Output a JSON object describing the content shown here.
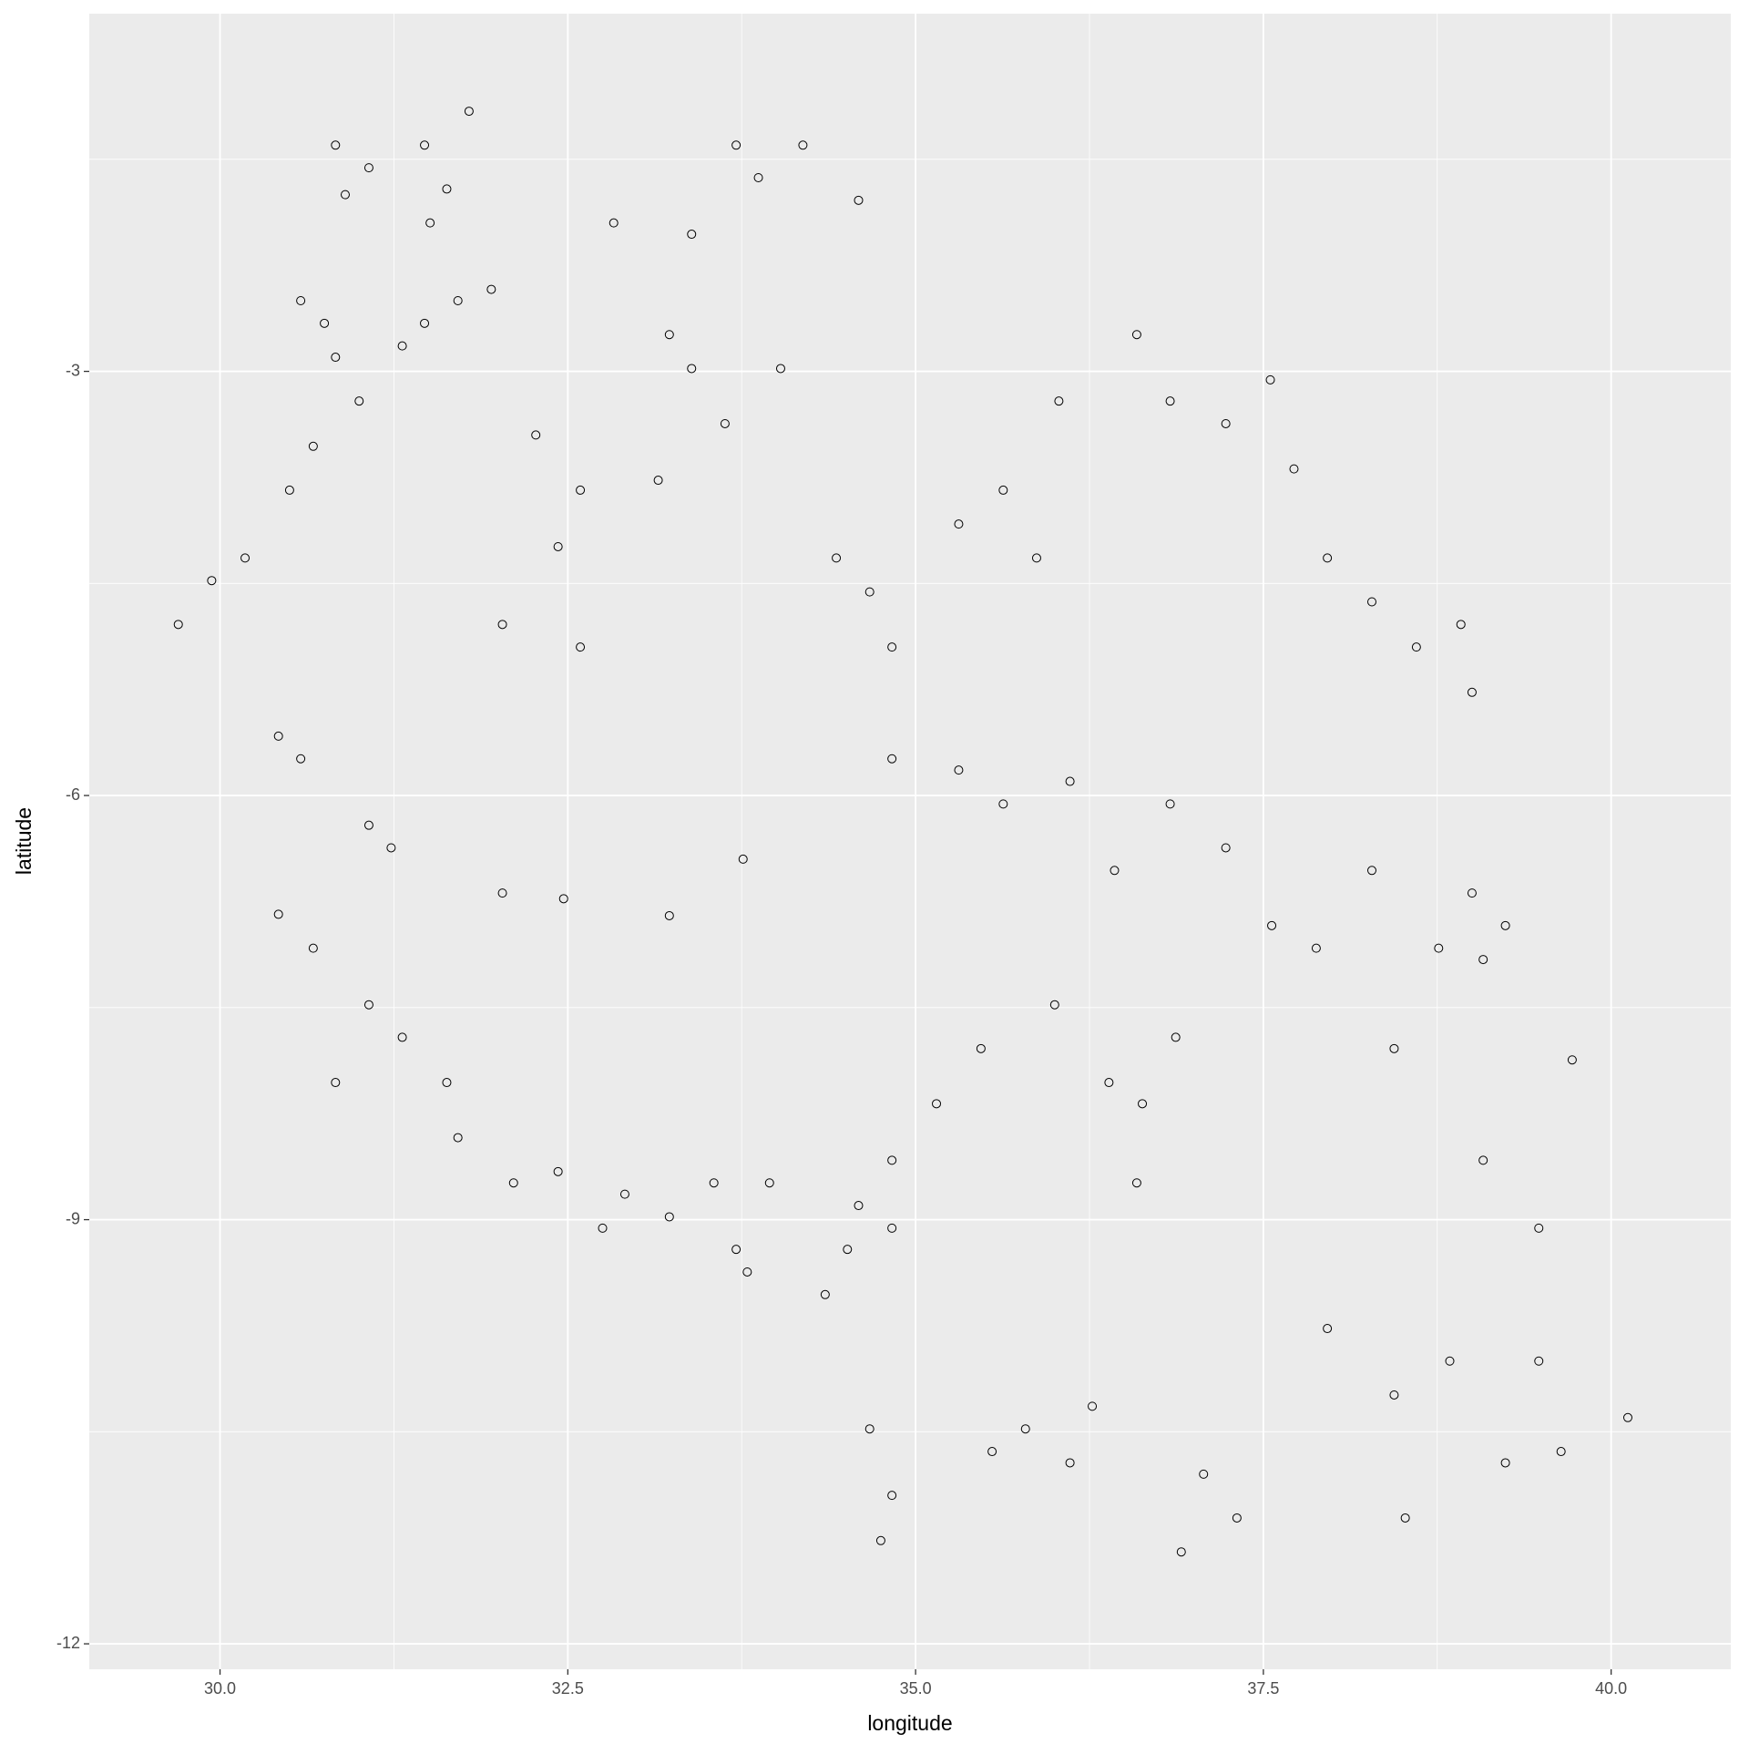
{
  "chart_data": {
    "type": "scatter",
    "x_label": "longitude",
    "y_label": "latitude",
    "xlim": [
      29.06,
      40.86
    ],
    "ylim": [
      -12.18,
      -0.47
    ],
    "xticks": [
      {
        "value": 30,
        "label": "30.0"
      },
      32.5,
      {
        "value": 35,
        "label": "35.0"
      },
      37.5,
      {
        "value": 40,
        "label": "40.0"
      }
    ],
    "yticks": [
      -3,
      -6,
      -9,
      -12
    ],
    "xminor": [
      31.25,
      33.75,
      36.25,
      38.75
    ],
    "yminor": [
      -1.5,
      -4.5,
      -7.5,
      -10.5
    ],
    "grid": true,
    "color": "#000000",
    "x": [
      30.83,
      31.07,
      31.47,
      31.63,
      31.79,
      30.9,
      31.51,
      30.58,
      30.75,
      30.83,
      31.47,
      31.71,
      31.31,
      31.0,
      30.67,
      30.5,
      29.94,
      29.7,
      30.18,
      30.42,
      30.58,
      32.27,
      32.59,
      33.23,
      33.39,
      34.03,
      33.63,
      33.15,
      32.43,
      32.03,
      32.59,
      31.95,
      32.83,
      33.39,
      33.87,
      34.19,
      34.59,
      33.71,
      34.67,
      34.83,
      34.43,
      35.31,
      35.63,
      35.87,
      36.03,
      36.83,
      37.23,
      37.55,
      36.59,
      37.72,
      37.96,
      38.28,
      38.6,
      38.92,
      39.0,
      35.63,
      36.11,
      36.83,
      37.23,
      36.43,
      35.31,
      34.83,
      39.0,
      39.08,
      39.24,
      38.76,
      38.28,
      37.88,
      37.56,
      36.87,
      36.63,
      36.59,
      36.39,
      36.0,
      35.47,
      35.15,
      34.83,
      34.59,
      34.51,
      34.35,
      34.83,
      32.75,
      32.91,
      33.23,
      33.79,
      33.71,
      33.55,
      33.95,
      32.43,
      32.11,
      31.07,
      31.31,
      31.63,
      31.71,
      30.67,
      31.07,
      31.23,
      30.42,
      30.83,
      32.03,
      32.47,
      33.23,
      33.76,
      34.67,
      34.83,
      34.75,
      35.55,
      35.79,
      36.11,
      36.27,
      37.07,
      37.31,
      36.91,
      38.44,
      38.84,
      39.24,
      39.64,
      40.12,
      39.48,
      38.52,
      37.96,
      39.08,
      39.48,
      39.72,
      38.44
    ],
    "values": [
      -1.4,
      -1.56,
      -1.4,
      -1.71,
      -1.16,
      -1.75,
      -1.95,
      -2.5,
      -2.66,
      -2.9,
      -2.66,
      -2.5,
      -2.82,
      -3.21,
      -3.53,
      -3.84,
      -4.48,
      -4.79,
      -4.32,
      -5.58,
      -5.74,
      -3.45,
      -3.84,
      -2.74,
      -2.98,
      -2.98,
      -3.37,
      -3.77,
      -4.24,
      -4.79,
      -4.95,
      -2.42,
      -1.95,
      -2.03,
      -1.63,
      -1.4,
      -1.79,
      -1.4,
      -4.56,
      -4.95,
      -4.32,
      -4.08,
      -3.84,
      -4.32,
      -3.21,
      -3.21,
      -3.37,
      -3.06,
      -2.74,
      -3.69,
      -4.32,
      -4.63,
      -4.95,
      -4.79,
      -5.27,
      -6.06,
      -5.9,
      -6.06,
      -6.37,
      -6.53,
      -5.82,
      -5.74,
      -6.69,
      -7.16,
      -6.92,
      -7.08,
      -6.53,
      -7.08,
      -6.92,
      -7.71,
      -8.18,
      -8.74,
      -8.03,
      -7.48,
      -7.79,
      -8.18,
      -8.58,
      -8.9,
      -9.21,
      -9.53,
      -9.06,
      -9.06,
      -8.82,
      -8.98,
      -9.37,
      -9.21,
      -8.74,
      -8.74,
      -8.66,
      -8.74,
      -7.48,
      -7.71,
      -8.03,
      -8.42,
      -7.08,
      -6.21,
      -6.37,
      -6.84,
      -8.03,
      -6.69,
      -6.73,
      -6.85,
      -6.45,
      -10.48,
      -10.95,
      -11.27,
      -10.64,
      -10.48,
      -10.72,
      -10.32,
      -10.8,
      -11.11,
      -11.35,
      -10.24,
      -10.0,
      -10.72,
      -10.64,
      -10.4,
      -10.0,
      -11.11,
      -9.77,
      -8.58,
      -9.06,
      -7.87,
      -7.79
    ]
  }
}
